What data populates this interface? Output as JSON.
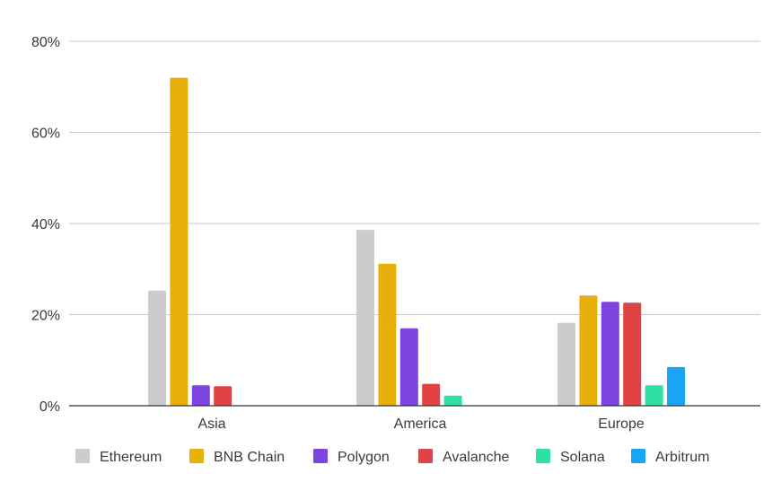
{
  "chart_data": {
    "type": "bar",
    "title": "",
    "xlabel": "",
    "ylabel": "",
    "categories": [
      "Asia",
      "America",
      "Europe"
    ],
    "ylim": [
      0,
      80
    ],
    "y_ticks": [
      "0%",
      "20%",
      "40%",
      "60%",
      "80%"
    ],
    "y_tick_values": [
      0,
      20,
      40,
      60,
      80
    ],
    "grid": true,
    "legend_position": "bottom",
    "series": [
      {
        "name": "Ethereum",
        "color": "#cccccc",
        "values": [
          25.3,
          38.6,
          18.2
        ]
      },
      {
        "name": "BNB Chain",
        "color": "#e8b00b",
        "values": [
          72.0,
          31.2,
          24.2
        ]
      },
      {
        "name": "Polygon",
        "color": "#7c44e0",
        "values": [
          4.5,
          17.0,
          22.8
        ]
      },
      {
        "name": "Avalanche",
        "color": "#e04343",
        "values": [
          4.3,
          4.8,
          22.6
        ]
      },
      {
        "name": "Solana",
        "color": "#2ee0a4",
        "values": [
          null,
          2.2,
          4.5
        ]
      },
      {
        "name": "Arbitrum",
        "color": "#1aa5f2",
        "values": [
          null,
          null,
          8.5
        ]
      }
    ]
  }
}
